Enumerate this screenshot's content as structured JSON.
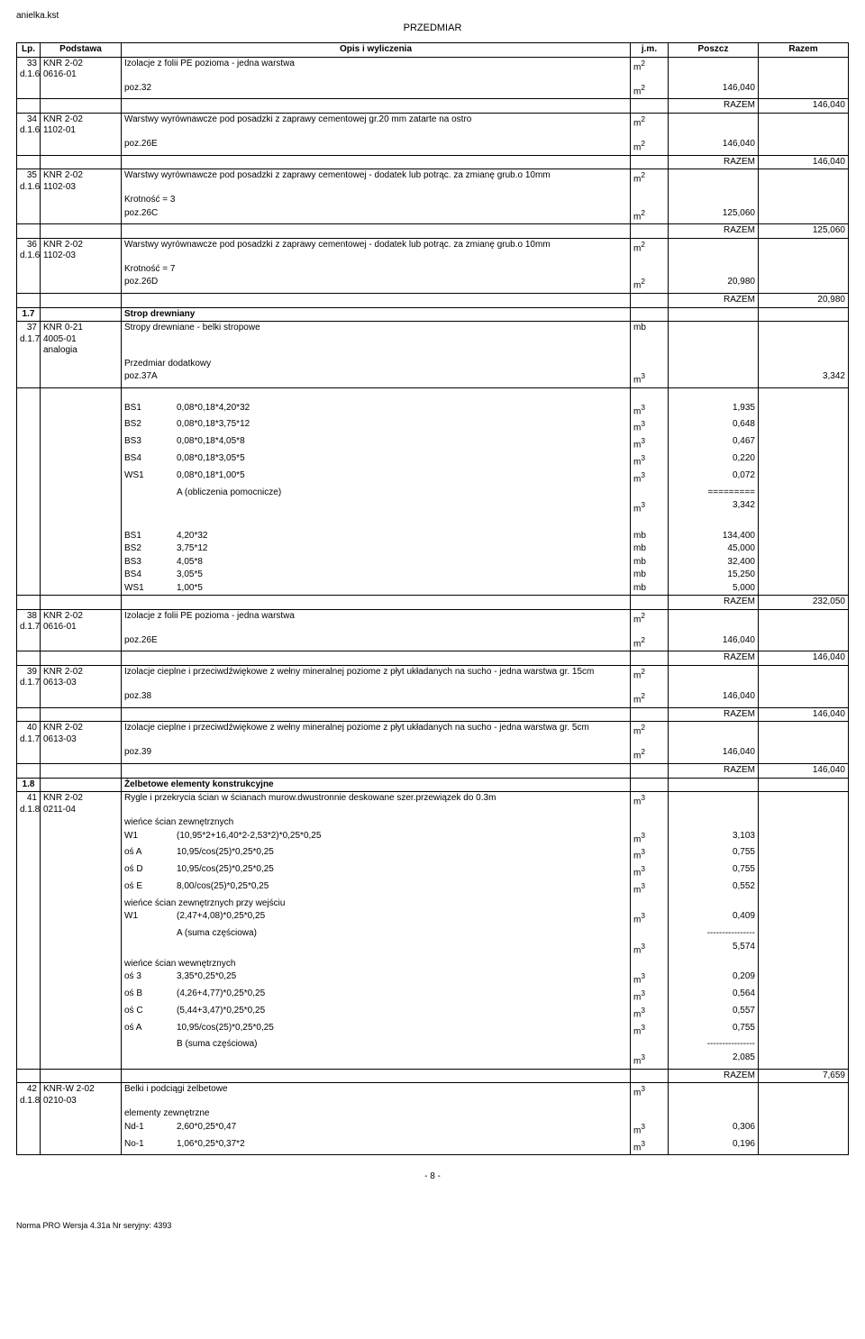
{
  "header": {
    "filename": "anielka.kst",
    "title": "PRZEDMIAR"
  },
  "columns": [
    "Lp.",
    "Podstawa",
    "Opis i wyliczenia",
    "j.m.",
    "Poszcz",
    "Razem"
  ],
  "rows": [
    {
      "t": "item",
      "lp": "33",
      "dref": "d.1.6",
      "code": "KNR 2-02",
      "codenum": "0616-01",
      "desc": "Izolacje z folii PE pozioma - jedna warstwa",
      "jm": "m2"
    },
    {
      "t": "calc",
      "desc": "poz.32",
      "jm": "m2",
      "pos": "146,040"
    },
    {
      "t": "razem",
      "val": "146,040"
    },
    {
      "t": "item",
      "lp": "34",
      "dref": "d.1.6",
      "code": "KNR 2-02",
      "codenum": "1102-01",
      "desc": "Warstwy wyrównawcze pod posadzki z zaprawy cementowej gr.20 mm zatarte na ostro",
      "jm": "m2"
    },
    {
      "t": "calc",
      "desc": "poz.26E",
      "jm": "m2",
      "pos": "146,040"
    },
    {
      "t": "razem",
      "val": "146,040"
    },
    {
      "t": "item",
      "lp": "35",
      "dref": "d.1.6",
      "code": "KNR 2-02",
      "codenum": "1102-03",
      "desc": "Warstwy wyrównawcze pod posadzki z zaprawy cementowej - dodatek lub potrąc. za zmianę grub.o 10mm",
      "jm": "m2"
    },
    {
      "t": "cont",
      "desc": "Krotność = 3"
    },
    {
      "t": "calc",
      "desc": "poz.26C",
      "jm": "m2",
      "pos": "125,060"
    },
    {
      "t": "razem",
      "val": "125,060"
    },
    {
      "t": "item",
      "lp": "36",
      "dref": "d.1.6",
      "code": "KNR 2-02",
      "codenum": "1102-03",
      "desc": "Warstwy wyrównawcze pod posadzki z zaprawy cementowej - dodatek lub potrąc. za zmianę grub.o 10mm",
      "jm": "m2"
    },
    {
      "t": "cont",
      "desc": "Krotność = 7"
    },
    {
      "t": "calc",
      "desc": "poz.26D",
      "jm": "m2",
      "pos": "20,980"
    },
    {
      "t": "razem",
      "val": "20,980"
    },
    {
      "t": "section",
      "num": "1.7",
      "title": "Strop drewniany"
    },
    {
      "t": "item",
      "lp": "37",
      "dref": "d.1.7",
      "code": "KNR 0-21",
      "codenum": "4005-01",
      "code3": "analogia",
      "desc": "Stropy drewniane - belki stropowe",
      "jm": "mb"
    },
    {
      "t": "cont",
      "desc": "Przedmiar dodatkowy"
    },
    {
      "t": "calc",
      "desc": "poz.37A",
      "jm": "m3",
      "raz": "3,342"
    },
    {
      "t": "spacer"
    },
    {
      "t": "labcalc",
      "lab": "BS1",
      "desc": "0,08*0,18*4,20*32",
      "jm": "m3",
      "pos": "1,935"
    },
    {
      "t": "labcalc",
      "lab": "BS2",
      "desc": "0,08*0,18*3,75*12",
      "jm": "m3",
      "pos": "0,648"
    },
    {
      "t": "labcalc",
      "lab": "BS3",
      "desc": "0,08*0,18*4,05*8",
      "jm": "m3",
      "pos": "0,467"
    },
    {
      "t": "labcalc",
      "lab": "BS4",
      "desc": "0,08*0,18*3,05*5",
      "jm": "m3",
      "pos": "0,220"
    },
    {
      "t": "labcalc",
      "lab": "WS1",
      "desc": "0,08*0,18*1,00*5",
      "jm": "m3",
      "pos": "0,072"
    },
    {
      "t": "labcalc",
      "lab": "",
      "desc": "A  (obliczenia pomocnicze)",
      "jm": "",
      "pos": "========="
    },
    {
      "t": "labcalc",
      "lab": "",
      "desc": "",
      "jm": "m3",
      "pos": "3,342"
    },
    {
      "t": "spacer"
    },
    {
      "t": "labcalc",
      "lab": "BS1",
      "desc": "4,20*32",
      "jm": "mb",
      "pos": "134,400"
    },
    {
      "t": "labcalc",
      "lab": "BS2",
      "desc": "3,75*12",
      "jm": "mb",
      "pos": "45,000"
    },
    {
      "t": "labcalc",
      "lab": "BS3",
      "desc": "4,05*8",
      "jm": "mb",
      "pos": "32,400"
    },
    {
      "t": "labcalc",
      "lab": "BS4",
      "desc": "3,05*5",
      "jm": "mb",
      "pos": "15,250"
    },
    {
      "t": "labcalc",
      "lab": "WS1",
      "desc": "1,00*5",
      "jm": "mb",
      "pos": "5,000"
    },
    {
      "t": "razem",
      "val": "232,050"
    },
    {
      "t": "item",
      "lp": "38",
      "dref": "d.1.7",
      "code": "KNR 2-02",
      "codenum": "0616-01",
      "desc": "Izolacje z folii PE pozioma - jedna warstwa",
      "jm": "m2"
    },
    {
      "t": "calc",
      "desc": "poz.26E",
      "jm": "m2",
      "pos": "146,040"
    },
    {
      "t": "razem",
      "val": "146,040"
    },
    {
      "t": "item",
      "lp": "39",
      "dref": "d.1.7",
      "code": "KNR 2-02",
      "codenum": "0613-03",
      "desc": "Izolacje cieplne i przeciwdźwiękowe z wełny mineralnej poziome z płyt układanych na sucho - jedna warstwa gr. 15cm",
      "jm": "m2"
    },
    {
      "t": "calc",
      "desc": "poz.38",
      "jm": "m2",
      "pos": "146,040"
    },
    {
      "t": "razem",
      "val": "146,040"
    },
    {
      "t": "item",
      "lp": "40",
      "dref": "d.1.7",
      "code": "KNR 2-02",
      "codenum": "0613-03",
      "desc": "Izolacje cieplne i przeciwdźwiękowe z wełny mineralnej poziome z płyt układanych na sucho - jedna warstwa gr. 5cm",
      "jm": "m2"
    },
    {
      "t": "calc",
      "desc": "poz.39",
      "jm": "m2",
      "pos": "146,040"
    },
    {
      "t": "razem",
      "val": "146,040"
    },
    {
      "t": "section",
      "num": "1.8",
      "title": "Żelbetowe elementy konstrukcyjne"
    },
    {
      "t": "item",
      "lp": "41",
      "dref": "d.1.8",
      "code": "KNR 2-02",
      "codenum": "0211-04",
      "desc": "Rygle i przekrycia ścian w ścianach murow.dwustronnie deskowane szer.przewiązek do 0.3m",
      "jm": "m3"
    },
    {
      "t": "cont",
      "desc": "wieńce ścian zewnętrznych"
    },
    {
      "t": "labcalc",
      "lab": "W1",
      "desc": "(10,95*2+16,40*2-2,53*2)*0,25*0,25",
      "jm": "m3",
      "pos": "3,103"
    },
    {
      "t": "labcalc",
      "lab": "oś A",
      "desc": "10,95/cos(25)*0,25*0,25",
      "jm": "m3",
      "pos": "0,755"
    },
    {
      "t": "labcalc",
      "lab": "oś D",
      "desc": "10,95/cos(25)*0,25*0,25",
      "jm": "m3",
      "pos": "0,755"
    },
    {
      "t": "labcalc",
      "lab": "oś E",
      "desc": "8,00/cos(25)*0,25*0,25",
      "jm": "m3",
      "pos": "0,552"
    },
    {
      "t": "cont",
      "desc": "wieńce ścian zewnętrznych przy wejściu"
    },
    {
      "t": "labcalc",
      "lab": "W1",
      "desc": "(2,47+4,08)*0,25*0,25",
      "jm": "m3",
      "pos": "0,409"
    },
    {
      "t": "labcalc",
      "lab": "",
      "desc": "A  (suma częściowa)",
      "jm": "",
      "pos": "----------------"
    },
    {
      "t": "labcalc",
      "lab": "",
      "desc": "",
      "jm": "m3",
      "pos": "5,574"
    },
    {
      "t": "cont",
      "desc": "wieńce ścian wewnętrznych"
    },
    {
      "t": "labcalc",
      "lab": "oś 3",
      "desc": "3,35*0,25*0,25",
      "jm": "m3",
      "pos": "0,209"
    },
    {
      "t": "labcalc",
      "lab": "oś B",
      "desc": "(4,26+4,77)*0,25*0,25",
      "jm": "m3",
      "pos": "0,564"
    },
    {
      "t": "labcalc",
      "lab": "oś C",
      "desc": "(5,44+3,47)*0,25*0,25",
      "jm": "m3",
      "pos": "0,557"
    },
    {
      "t": "labcalc",
      "lab": "oś A",
      "desc": "10,95/cos(25)*0,25*0,25",
      "jm": "m3",
      "pos": "0,755"
    },
    {
      "t": "labcalc",
      "lab": "",
      "desc": "B  (suma częściowa)",
      "jm": "",
      "pos": "----------------"
    },
    {
      "t": "labcalc",
      "lab": "",
      "desc": "",
      "jm": "m3",
      "pos": "2,085"
    },
    {
      "t": "razem",
      "val": "7,659"
    },
    {
      "t": "item",
      "lp": "42",
      "dref": "d.1.8",
      "code": "KNR-W 2-02",
      "codenum": "0210-03",
      "desc": "Belki i podciągi  żelbetowe",
      "jm": "m3"
    },
    {
      "t": "cont",
      "desc": "elementy zewnętrzne"
    },
    {
      "t": "labcalc",
      "lab": "Nd-1",
      "desc": "2,60*0,25*0,47",
      "jm": "m3",
      "pos": "0,306"
    },
    {
      "t": "labcalc-last",
      "lab": "No-1",
      "desc": "1,06*0,25*0,37*2",
      "jm": "m3",
      "pos": "0,196"
    }
  ],
  "razem_label": "RAZEM",
  "footer": {
    "page": "- 8 -",
    "software": "Norma PRO Wersja 4.31a Nr seryjny: 4393"
  }
}
